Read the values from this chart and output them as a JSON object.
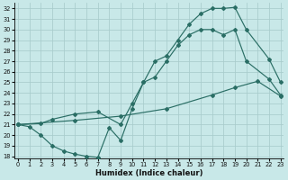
{
  "xlabel": "Humidex (Indice chaleur)",
  "background_color": "#c8e8e8",
  "grid_color": "#a8cccc",
  "line_color": "#2a6e65",
  "xlim": [
    -0.3,
    23.3
  ],
  "ylim": [
    17.8,
    32.5
  ],
  "xticks": [
    0,
    1,
    2,
    3,
    4,
    5,
    6,
    7,
    8,
    9,
    10,
    11,
    12,
    13,
    14,
    15,
    16,
    17,
    18,
    19,
    20,
    21,
    22,
    23
  ],
  "yticks": [
    18,
    19,
    20,
    21,
    22,
    23,
    24,
    25,
    26,
    27,
    28,
    29,
    30,
    31,
    32
  ],
  "curve_dip_x": [
    0,
    1,
    2,
    3,
    4,
    5,
    6,
    7,
    8,
    9,
    10,
    11,
    12,
    13,
    14,
    15,
    16,
    17,
    18,
    19,
    20,
    22,
    23
  ],
  "curve_dip_y": [
    21,
    20.8,
    20,
    19,
    18.5,
    18.2,
    18.0,
    17.9,
    20.7,
    19.5,
    22.5,
    25,
    25.5,
    27,
    28.5,
    29.5,
    30,
    30,
    29.5,
    30,
    27.0,
    25.3,
    23.8
  ],
  "curve_flat_x": [
    0,
    5,
    9,
    13,
    17,
    19,
    21,
    23
  ],
  "curve_flat_y": [
    21,
    21.4,
    21.8,
    22.5,
    23.8,
    24.5,
    25.1,
    23.7
  ],
  "curve_steep_x": [
    0,
    2,
    3,
    5,
    7,
    9,
    10,
    11,
    12,
    13,
    14,
    15,
    16,
    17,
    18,
    19,
    20,
    22,
    23
  ],
  "curve_steep_y": [
    21,
    21.1,
    21.5,
    22.0,
    22.2,
    21.0,
    23.0,
    25.0,
    27.0,
    27.5,
    29.0,
    30.5,
    31.5,
    32.0,
    32.0,
    32.1,
    30.0,
    27.2,
    25.0
  ]
}
